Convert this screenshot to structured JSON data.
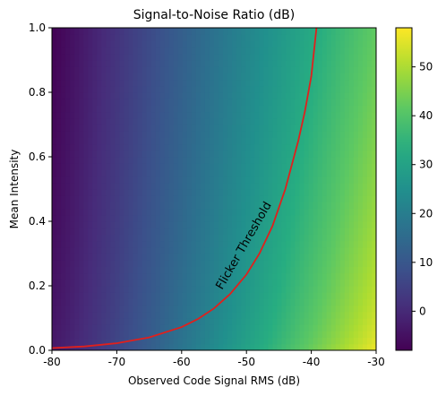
{
  "chart_data": {
    "type": "heatmap",
    "title": "Signal-to-Noise Ratio (dB)",
    "xlabel": "Observed Code Signal RMS (dB)",
    "ylabel": "Mean Intensity",
    "xlim": [
      -80,
      -30
    ],
    "ylim": [
      0.0,
      1.0
    ],
    "x_ticks": [
      -80,
      -70,
      -60,
      -50,
      -40,
      -30
    ],
    "x_tick_labels": [
      "-80",
      "-70",
      "-60",
      "-50",
      "-40",
      "-30"
    ],
    "y_ticks": [
      0.0,
      0.2,
      0.4,
      0.6,
      0.8,
      1.0
    ],
    "y_tick_labels": [
      "0.0",
      "0.2",
      "0.4",
      "0.6",
      "0.8",
      "1.0"
    ],
    "colormap": "viridis",
    "color_range": [
      -8,
      58
    ],
    "colorbar_ticks": [
      0,
      10,
      20,
      30,
      40,
      50
    ],
    "colorbar_tick_labels": [
      "0",
      "10",
      "20",
      "30",
      "40",
      "50"
    ],
    "field": {
      "description_of_values": "SNR grows ~linearly with x and decreases with mean intensity",
      "samples": [
        {
          "x": -80,
          "y": 0.0,
          "value": -3
        },
        {
          "x": -80,
          "y": 1.0,
          "value": -8
        },
        {
          "x": -55,
          "y": 0.5,
          "value": 16
        },
        {
          "x": -30,
          "y": 0.0,
          "value": 57
        },
        {
          "x": -30,
          "y": 1.0,
          "value": 42
        }
      ]
    },
    "threshold_curve": {
      "label": "Flicker Threshold",
      "color": "#e0201c",
      "x": [
        -80,
        -75,
        -70,
        -65,
        -60,
        -57.5,
        -55,
        -52.5,
        -50,
        -48,
        -46,
        -44,
        -42,
        -41,
        -40,
        -39.2
      ],
      "y": [
        0.007,
        0.012,
        0.022,
        0.04,
        0.072,
        0.097,
        0.13,
        0.175,
        0.235,
        0.3,
        0.385,
        0.5,
        0.65,
        0.74,
        0.85,
        1.0
      ]
    }
  }
}
